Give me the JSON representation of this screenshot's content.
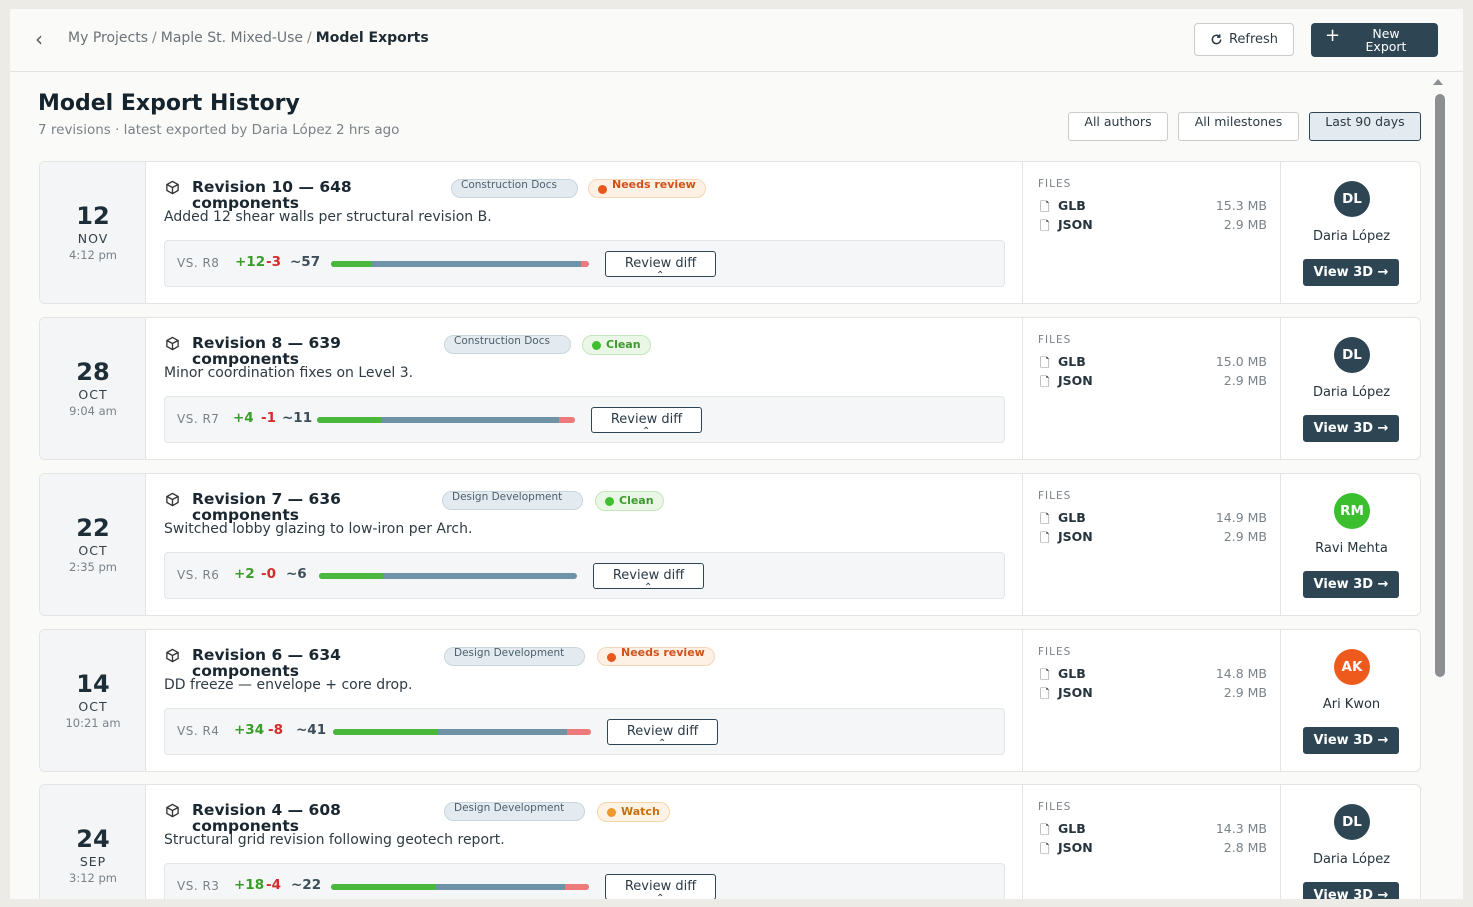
{
  "breadcrumb": {
    "items": [
      "My Projects",
      "Maple St. Mixed-Use",
      "Model Exports"
    ],
    "separator": "/"
  },
  "header": {
    "refresh_label": "Refresh",
    "new_export_label": "New Export"
  },
  "page": {
    "title": "Model Export History",
    "subtitle": "7 revisions · latest exported by Daria López 2 hrs ago"
  },
  "filters": {
    "authors": "All authors",
    "milestones": "All milestones",
    "range": "Last 90 days"
  },
  "labels": {
    "files": "FILES",
    "review_diff": "Review diff",
    "view_3d": "View 3D →"
  },
  "colors": {
    "primary": "#2e4554",
    "added": "#3a9d2a",
    "removed": "#d52b2b",
    "avatar_dl": "#2e4554",
    "avatar_rm": "#3bbf2e",
    "avatar_ak": "#ee5a1c"
  },
  "revisions": [
    {
      "day": "12",
      "month": "NOV",
      "time": "4:12 pm",
      "title": "Revision 10 — 648 components",
      "phase": "Construction Docs",
      "status": "Needs review",
      "status_kind": "warn",
      "description": "Added 12 shear walls per structural revision B.",
      "vs": "VS. R8",
      "added": "+12",
      "removed": "-3",
      "changed": "~57",
      "files": [
        {
          "name": "GLB",
          "size": "15.3 MB"
        },
        {
          "name": "JSON",
          "size": "2.9 MB"
        }
      ],
      "author": "Daria López",
      "initials": "DL",
      "avatar_color": "#2e4554"
    },
    {
      "day": "28",
      "month": "OCT",
      "time": "9:04 am",
      "title": "Revision 8 — 639 components",
      "phase": "Construction Docs",
      "status": "Clean",
      "status_kind": "ok",
      "description": "Minor coordination fixes on Level 3.",
      "vs": "VS. R7",
      "added": "+4",
      "removed": "-1",
      "changed": "~11",
      "files": [
        {
          "name": "GLB",
          "size": "15.0 MB"
        },
        {
          "name": "JSON",
          "size": "2.9 MB"
        }
      ],
      "author": "Daria López",
      "initials": "DL",
      "avatar_color": "#2e4554"
    },
    {
      "day": "22",
      "month": "OCT",
      "time": "2:35 pm",
      "title": "Revision 7 — 636 components",
      "phase": "Design Development",
      "status": "Clean",
      "status_kind": "ok",
      "description": "Switched lobby glazing to low-iron per Arch.",
      "vs": "VS. R6",
      "added": "+2",
      "removed": "-0",
      "changed": "~6",
      "files": [
        {
          "name": "GLB",
          "size": "14.9 MB"
        },
        {
          "name": "JSON",
          "size": "2.9 MB"
        }
      ],
      "author": "Ravi Mehta",
      "initials": "RM",
      "avatar_color": "#3bbf2e"
    },
    {
      "day": "14",
      "month": "OCT",
      "time": "10:21 am",
      "title": "Revision 6 — 634 components",
      "phase": "Design Development",
      "status": "Needs review",
      "status_kind": "warn",
      "description": "DD freeze — envelope + core drop.",
      "vs": "VS. R4",
      "added": "+34",
      "removed": "-8",
      "changed": "~41",
      "files": [
        {
          "name": "GLB",
          "size": "14.8 MB"
        },
        {
          "name": "JSON",
          "size": "2.9 MB"
        }
      ],
      "author": "Ari Kwon",
      "initials": "AK",
      "avatar_color": "#ee5a1c"
    },
    {
      "day": "24",
      "month": "SEP",
      "time": "3:12 pm",
      "title": "Revision 4 — 608 components",
      "phase": "Design Development",
      "status": "Watch",
      "status_kind": "watch",
      "description": "Structural grid revision following geotech report.",
      "vs": "VS. R3",
      "added": "+18",
      "removed": "-4",
      "changed": "~22",
      "files": [
        {
          "name": "GLB",
          "size": "14.3 MB"
        },
        {
          "name": "JSON",
          "size": "2.8 MB"
        }
      ],
      "author": "Daria López",
      "initials": "DL",
      "avatar_color": "#2e4554"
    }
  ]
}
